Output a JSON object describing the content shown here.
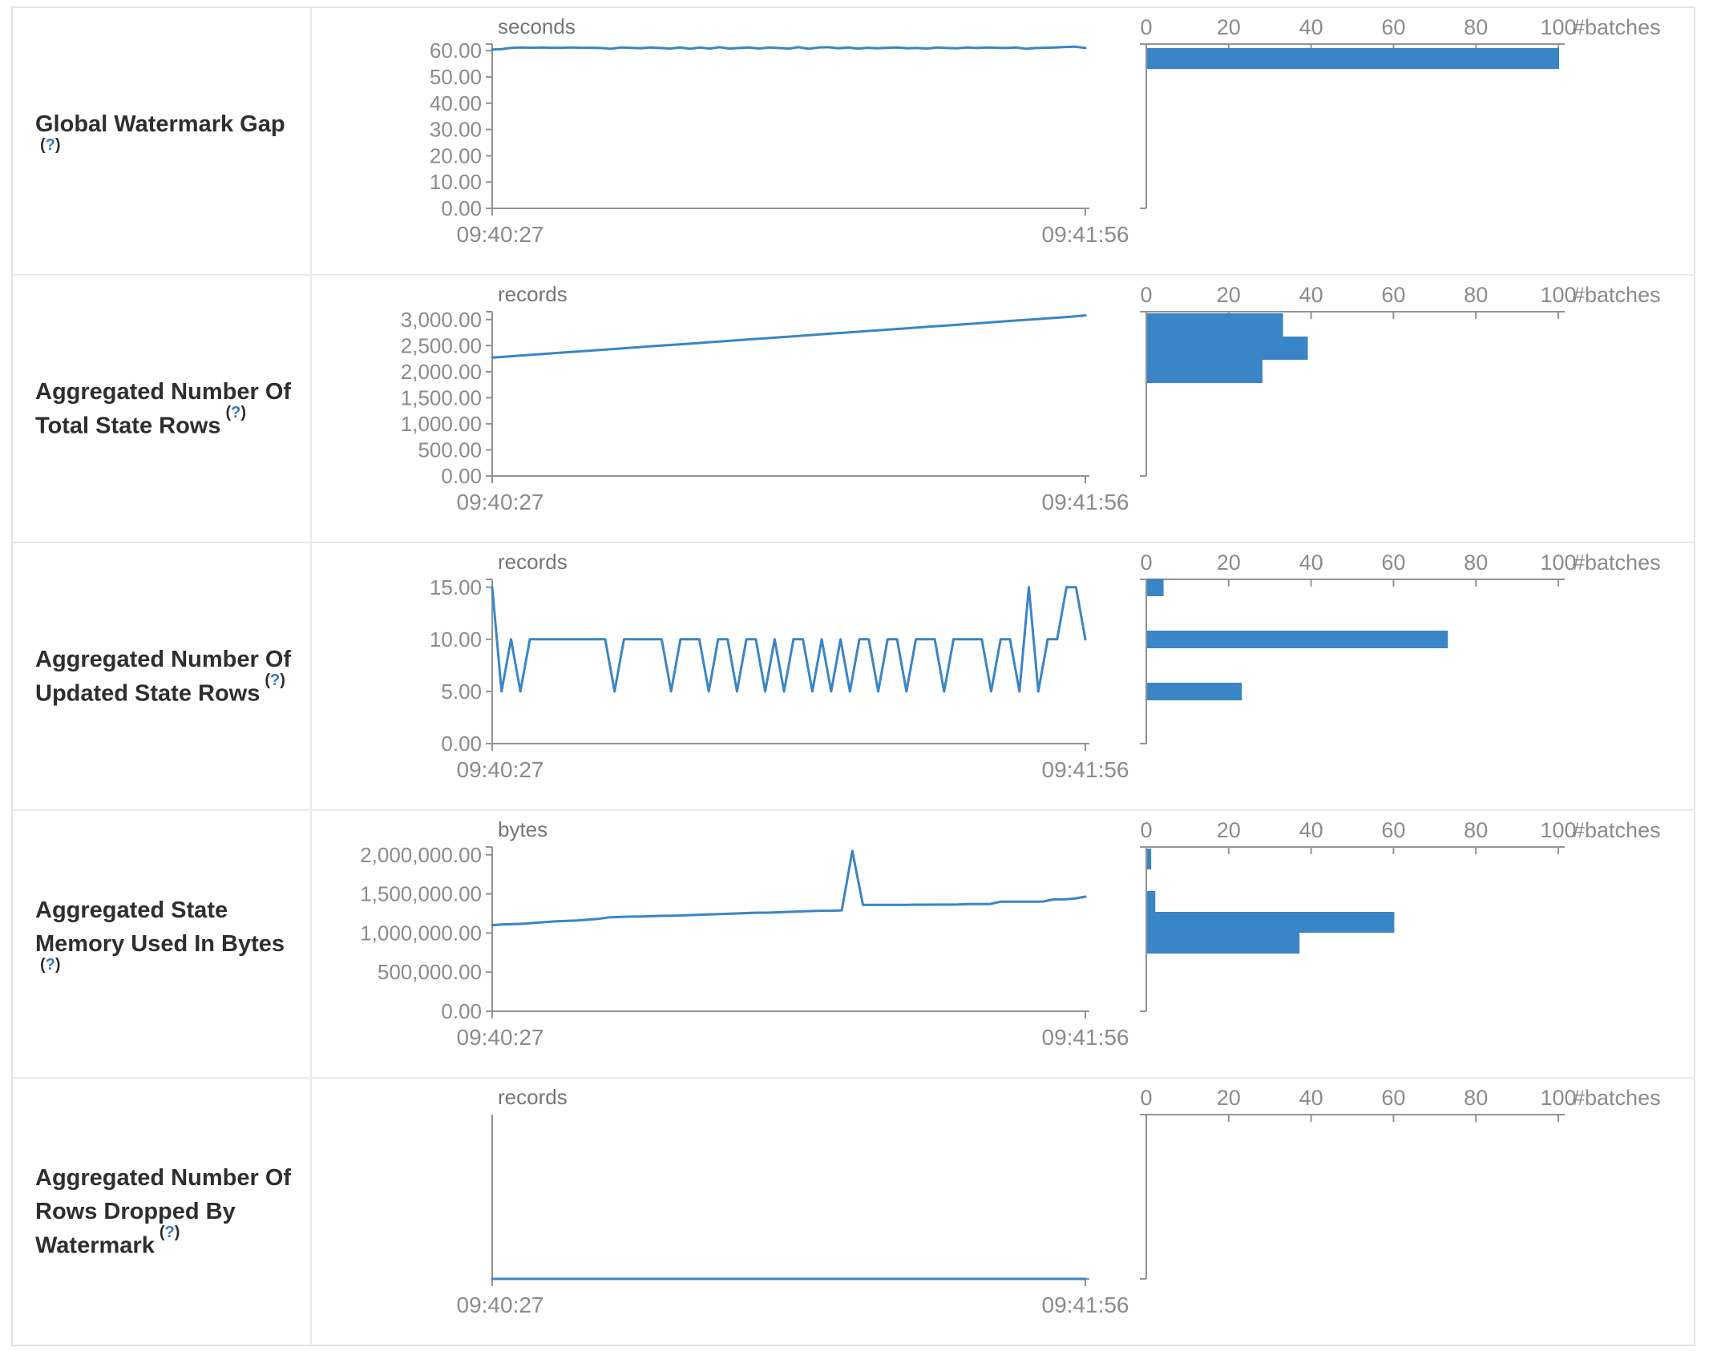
{
  "help": {
    "open": "(",
    "q": "?",
    "close": ")"
  },
  "rows": [
    {
      "name": "Global Watermark Gap"
    },
    {
      "name": "Aggregated Number Of Total State Rows"
    },
    {
      "name": "Aggregated Number Of Updated State Rows"
    },
    {
      "name": "Aggregated State Memory Used In Bytes"
    },
    {
      "name": "Aggregated Number Of Rows Dropped By Watermark"
    }
  ],
  "colors": {
    "series": "#3a85c6",
    "axis": "#939393",
    "tick_text": "#8b8b8b",
    "unit_text": "#757575"
  },
  "chart_data": [
    {
      "metric": "Global Watermark Gap",
      "timeline": {
        "type": "line",
        "unit": "seconds",
        "x_start": "09:40:27",
        "x_end": "09:41:56",
        "y_max": 62.5,
        "y_ticks": [
          {
            "v": 0,
            "t": "0.00"
          },
          {
            "v": 10,
            "t": "10.00"
          },
          {
            "v": 20,
            "t": "20.00"
          },
          {
            "v": 30,
            "t": "30.00"
          },
          {
            "v": 40,
            "t": "40.00"
          },
          {
            "v": 50,
            "t": "50.00"
          },
          {
            "v": 60,
            "t": "60.00"
          }
        ],
        "values": [
          60.4,
          60.6,
          61.1,
          61.2,
          61.1,
          61.2,
          61.1,
          61.1,
          61.2,
          61.1,
          61.1,
          61.0,
          60.7,
          61.2,
          61.1,
          60.9,
          61.2,
          61.0,
          60.8,
          61.2,
          60.7,
          61.2,
          60.8,
          61.3,
          60.8,
          61.0,
          61.2,
          60.8,
          61.2,
          61.0,
          60.8,
          61.3,
          60.7,
          61.2,
          61.3,
          60.9,
          61.2,
          60.8,
          61.1,
          60.9,
          61.1,
          61.2,
          60.9,
          61.0,
          60.8,
          61.2,
          61.0,
          60.9,
          61.2,
          61.0,
          61.2,
          61.1,
          61.0,
          61.2,
          60.7,
          61.0,
          61.1,
          61.2,
          61.4,
          61.5,
          61.0
        ]
      },
      "histogram": {
        "type": "bar",
        "axis_label": "#batches",
        "x_max": 100,
        "x_ticks": [
          {
            "v": 0,
            "t": "0"
          },
          {
            "v": 20,
            "t": "20"
          },
          {
            "v": 40,
            "t": "40"
          },
          {
            "v": 60,
            "t": "60"
          },
          {
            "v": 80,
            "t": "80"
          },
          {
            "v": 100,
            "t": "100"
          }
        ],
        "bars": [
          {
            "count": 100,
            "y": 50,
            "h": 26
          }
        ]
      }
    },
    {
      "metric": "Aggregated Number Of Total State Rows",
      "timeline": {
        "type": "line",
        "unit": "records",
        "x_start": "09:40:27",
        "x_end": "09:41:56",
        "y_max": 3150,
        "y_ticks": [
          {
            "v": 0,
            "t": "0.00"
          },
          {
            "v": 500,
            "t": "500.00"
          },
          {
            "v": 1000,
            "t": "1,000.00"
          },
          {
            "v": 1500,
            "t": "1,500.00"
          },
          {
            "v": 2000,
            "t": "2,000.00"
          },
          {
            "v": 2500,
            "t": "2,500.00"
          },
          {
            "v": 3000,
            "t": "3,000.00"
          }
        ],
        "values": [
          2270,
          2286,
          2303,
          2320,
          2336,
          2352,
          2369,
          2385,
          2402,
          2418,
          2434,
          2451,
          2467,
          2484,
          2500,
          2516,
          2533,
          2549,
          2566,
          2582,
          2598,
          2615,
          2631,
          2648,
          2664,
          2680,
          2697,
          2713,
          2730,
          2746,
          2762,
          2779,
          2795,
          2812,
          2828,
          2844,
          2861,
          2877,
          2894,
          2910,
          2926,
          2943,
          2959,
          2976,
          2992,
          3008,
          3025,
          3041,
          3058,
          3080
        ]
      },
      "histogram": {
        "type": "bar",
        "axis_label": "#batches",
        "x_max": 100,
        "x_ticks": [
          {
            "v": 0,
            "t": "0"
          },
          {
            "v": 20,
            "t": "20"
          },
          {
            "v": 40,
            "t": "40"
          },
          {
            "v": 60,
            "t": "60"
          },
          {
            "v": 80,
            "t": "80"
          },
          {
            "v": 100,
            "t": "100"
          }
        ],
        "bars": [
          {
            "count": 33,
            "y": 47,
            "h": 29
          },
          {
            "count": 39,
            "y": 76,
            "h": 29
          },
          {
            "count": 28,
            "y": 105,
            "h": 29
          }
        ]
      }
    },
    {
      "metric": "Aggregated Number Of Updated State Rows",
      "timeline": {
        "type": "line",
        "unit": "records",
        "x_start": "09:40:27",
        "x_end": "09:41:56",
        "y_max": 15.75,
        "y_ticks": [
          {
            "v": 0,
            "t": "0.00"
          },
          {
            "v": 5,
            "t": "5.00"
          },
          {
            "v": 10,
            "t": "10.00"
          },
          {
            "v": 15,
            "t": "15.00"
          }
        ],
        "values": [
          15,
          5,
          10,
          5,
          10,
          10,
          10,
          10,
          10,
          10,
          10,
          10,
          10,
          5,
          10,
          10,
          10,
          10,
          10,
          5,
          10,
          10,
          10,
          5,
          10,
          10,
          5,
          10,
          10,
          5,
          10,
          5,
          10,
          10,
          5,
          10,
          5,
          10,
          5,
          10,
          10,
          5,
          10,
          10,
          5,
          10,
          10,
          10,
          5,
          10,
          10,
          10,
          10,
          5,
          10,
          10,
          5,
          15,
          5,
          10,
          10,
          15,
          15,
          10
        ]
      },
      "histogram": {
        "type": "bar",
        "axis_label": "#batches",
        "x_max": 100,
        "x_ticks": [
          {
            "v": 0,
            "t": "0"
          },
          {
            "v": 20,
            "t": "20"
          },
          {
            "v": 40,
            "t": "40"
          },
          {
            "v": 60,
            "t": "60"
          },
          {
            "v": 80,
            "t": "80"
          },
          {
            "v": 100,
            "t": "100"
          }
        ],
        "bars": [
          {
            "count": 4,
            "y": 44,
            "h": 22
          },
          {
            "count": 73,
            "y": 109,
            "h": 22
          },
          {
            "count": 23,
            "y": 174,
            "h": 22
          }
        ]
      }
    },
    {
      "metric": "Aggregated State Memory Used In Bytes",
      "timeline": {
        "type": "line",
        "unit": "bytes",
        "x_start": "09:40:27",
        "x_end": "09:41:56",
        "y_max": 2100000,
        "y_ticks": [
          {
            "v": 0,
            "t": "0.00"
          },
          {
            "v": 500000,
            "t": "500,000.00"
          },
          {
            "v": 1000000,
            "t": "1,000,000.00"
          },
          {
            "v": 1500000,
            "t": "1,500,000.00"
          },
          {
            "v": 2000000,
            "t": "2,000,000.00"
          }
        ],
        "values": [
          1100000,
          1110000,
          1115000,
          1120000,
          1130000,
          1140000,
          1150000,
          1155000,
          1160000,
          1170000,
          1180000,
          1200000,
          1205000,
          1210000,
          1210000,
          1215000,
          1220000,
          1220000,
          1225000,
          1230000,
          1235000,
          1240000,
          1245000,
          1250000,
          1255000,
          1260000,
          1260000,
          1265000,
          1270000,
          1275000,
          1280000,
          1285000,
          1285000,
          1290000,
          2050000,
          1360000,
          1360000,
          1360000,
          1360000,
          1360000,
          1362000,
          1362000,
          1363000,
          1363000,
          1365000,
          1370000,
          1370000,
          1372000,
          1400000,
          1400000,
          1400000,
          1400000,
          1402000,
          1430000,
          1430000,
          1440000,
          1465000
        ]
      },
      "histogram": {
        "type": "bar",
        "axis_label": "#batches",
        "x_max": 100,
        "x_ticks": [
          {
            "v": 0,
            "t": "0"
          },
          {
            "v": 20,
            "t": "20"
          },
          {
            "v": 40,
            "t": "40"
          },
          {
            "v": 60,
            "t": "60"
          },
          {
            "v": 80,
            "t": "80"
          },
          {
            "v": 100,
            "t": "100"
          }
        ],
        "bars": [
          {
            "count": 1,
            "y": 47,
            "h": 26
          },
          {
            "count": 2,
            "y": 100,
            "h": 26
          },
          {
            "count": 60,
            "y": 126,
            "h": 26
          },
          {
            "count": 37,
            "y": 152,
            "h": 26
          }
        ]
      }
    },
    {
      "metric": "Aggregated Number Of Rows Dropped By Watermark",
      "timeline": {
        "type": "line",
        "unit": "records",
        "x_start": "09:40:27",
        "x_end": "09:41:56",
        "y_max": 1,
        "y_ticks": [],
        "values": [
          0,
          0,
          0,
          0,
          0,
          0,
          0,
          0,
          0,
          0,
          0,
          0,
          0,
          0,
          0,
          0,
          0,
          0,
          0,
          0,
          0,
          0,
          0,
          0,
          0,
          0,
          0,
          0,
          0,
          0,
          0,
          0,
          0,
          0,
          0,
          0,
          0,
          0,
          0,
          0,
          0,
          0,
          0,
          0,
          0
        ]
      },
      "histogram": {
        "type": "bar",
        "axis_label": "#batches",
        "x_max": 100,
        "x_ticks": [
          {
            "v": 0,
            "t": "0"
          },
          {
            "v": 20,
            "t": "20"
          },
          {
            "v": 40,
            "t": "40"
          },
          {
            "v": 60,
            "t": "60"
          },
          {
            "v": 80,
            "t": "80"
          },
          {
            "v": 100,
            "t": "100"
          }
        ],
        "bars": []
      }
    }
  ]
}
